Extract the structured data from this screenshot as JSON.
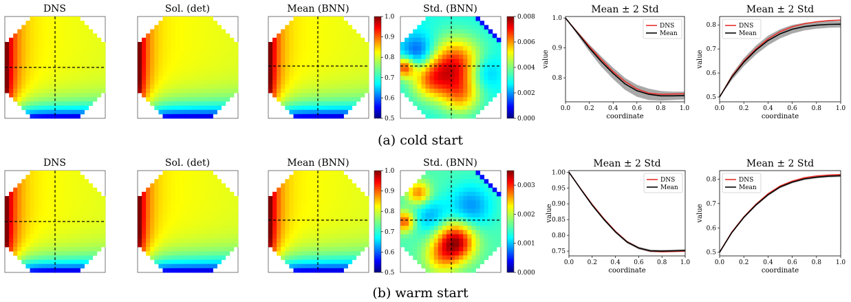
{
  "figure": {
    "rows": [
      {
        "caption": "(a) cold start",
        "panels": [
          {
            "title": "DNS",
            "field": "dns"
          },
          {
            "title": "Sol. (det)",
            "field": "det"
          },
          {
            "title": "Mean (BNN)",
            "field": "mean",
            "colorbar": {
              "min": 0.5,
              "max": 1.0,
              "ticks": [
                "0.5",
                "0.6",
                "0.7",
                "0.8",
                "0.9",
                "1.0"
              ]
            }
          },
          {
            "title": "Std. (BNN)",
            "field": "std_cold",
            "colorbar": {
              "min": 0.0,
              "max": 0.008,
              "ticks": [
                "0.000",
                "0.002",
                "0.004",
                "0.006",
                "0.008"
              ]
            }
          }
        ]
      },
      {
        "caption": "(b) warm start",
        "panels": [
          {
            "title": "DNS",
            "field": "dns"
          },
          {
            "title": "Sol. (det)",
            "field": "det"
          },
          {
            "title": "Mean (BNN)",
            "field": "mean",
            "colorbar": {
              "min": 0.5,
              "max": 1.0,
              "ticks": [
                "0.5",
                "0.6",
                "0.7",
                "0.8",
                "0.9",
                "1.0"
              ]
            }
          },
          {
            "title": "Std. (BNN)",
            "field": "std_warm",
            "colorbar": {
              "min": 0.0,
              "max": 0.0035,
              "ticks": [
                "0.000",
                "0.001",
                "0.002",
                "0.003"
              ]
            }
          }
        ]
      }
    ],
    "colors": {
      "dns": "#e8302a",
      "mean": "#000000",
      "band": "#9a9a9a"
    }
  },
  "chart_data": [
    {
      "type": "line",
      "title": "Mean ± 2 Std",
      "xlabel": "coordinate",
      "ylabel": "value",
      "xlim": [
        0,
        1
      ],
      "ylim": [
        0.72,
        1.005
      ],
      "xticks": [
        "0.0",
        "0.2",
        "0.4",
        "0.6",
        "0.8",
        "1.0"
      ],
      "yticks": [
        "0.8",
        "0.9",
        "1.0"
      ],
      "ytick_values": [
        0.8,
        0.9,
        1.0
      ],
      "legend": "top-right",
      "x": [
        0.0,
        0.1,
        0.2,
        0.3,
        0.4,
        0.5,
        0.6,
        0.7,
        0.8,
        0.9,
        1.0
      ],
      "series": [
        {
          "name": "DNS",
          "values": [
            1.0,
            0.952,
            0.905,
            0.862,
            0.821,
            0.788,
            0.763,
            0.749,
            0.745,
            0.746,
            0.747
          ]
        },
        {
          "name": "Mean",
          "values": [
            1.0,
            0.95,
            0.9,
            0.855,
            0.815,
            0.78,
            0.757,
            0.745,
            0.74,
            0.74,
            0.741
          ]
        }
      ],
      "band": {
        "lower": [
          1.0,
          0.944,
          0.888,
          0.838,
          0.796,
          0.76,
          0.737,
          0.726,
          0.724,
          0.726,
          0.728
        ],
        "upper": [
          1.0,
          0.956,
          0.912,
          0.872,
          0.834,
          0.8,
          0.777,
          0.764,
          0.756,
          0.754,
          0.754
        ]
      }
    },
    {
      "type": "line",
      "title": "Mean ± 2 Std",
      "xlabel": "coordinate",
      "ylabel": "value",
      "xlim": [
        0,
        1
      ],
      "ylim": [
        0.48,
        0.835
      ],
      "xticks": [
        "0.0",
        "0.2",
        "0.4",
        "0.6",
        "0.8",
        "1.0"
      ],
      "yticks": [
        "0.5",
        "0.6",
        "0.7",
        "0.8"
      ],
      "ytick_values": [
        0.5,
        0.6,
        0.7,
        0.8
      ],
      "legend": "top-left",
      "x": [
        0.0,
        0.1,
        0.2,
        0.3,
        0.4,
        0.5,
        0.6,
        0.7,
        0.8,
        0.9,
        1.0
      ],
      "series": [
        {
          "name": "DNS",
          "values": [
            0.5,
            0.585,
            0.65,
            0.7,
            0.742,
            0.772,
            0.792,
            0.805,
            0.813,
            0.818,
            0.82
          ]
        },
        {
          "name": "Mean",
          "values": [
            0.5,
            0.582,
            0.645,
            0.695,
            0.735,
            0.763,
            0.782,
            0.793,
            0.799,
            0.802,
            0.803
          ]
        }
      ],
      "band": {
        "lower": [
          0.5,
          0.57,
          0.628,
          0.676,
          0.715,
          0.744,
          0.764,
          0.777,
          0.784,
          0.788,
          0.79
        ],
        "upper": [
          0.5,
          0.594,
          0.662,
          0.714,
          0.755,
          0.782,
          0.8,
          0.809,
          0.814,
          0.816,
          0.816
        ]
      }
    },
    {
      "type": "line",
      "title": "Mean ± 2 Std",
      "xlabel": "coordinate",
      "ylabel": "value",
      "xlim": [
        0,
        1
      ],
      "ylim": [
        0.735,
        1.005
      ],
      "xticks": [
        "0.0",
        "0.2",
        "0.4",
        "0.6",
        "0.8",
        "1.0"
      ],
      "yticks": [
        "0.75",
        "0.80",
        "0.85",
        "0.90",
        "0.95",
        "1.00"
      ],
      "ytick_values": [
        0.75,
        0.8,
        0.85,
        0.9,
        0.95,
        1.0
      ],
      "legend": "top-right",
      "x": [
        0.0,
        0.1,
        0.2,
        0.3,
        0.4,
        0.5,
        0.6,
        0.7,
        0.8,
        0.9,
        1.0
      ],
      "series": [
        {
          "name": "DNS",
          "values": [
            1.0,
            0.948,
            0.898,
            0.853,
            0.813,
            0.78,
            0.76,
            0.75,
            0.748,
            0.749,
            0.75
          ]
        },
        {
          "name": "Mean",
          "values": [
            1.0,
            0.947,
            0.896,
            0.851,
            0.811,
            0.779,
            0.76,
            0.751,
            0.75,
            0.751,
            0.752
          ]
        }
      ],
      "band": {
        "lower": [
          1.0,
          0.944,
          0.892,
          0.847,
          0.807,
          0.775,
          0.756,
          0.747,
          0.746,
          0.747,
          0.748
        ],
        "upper": [
          1.0,
          0.95,
          0.9,
          0.855,
          0.815,
          0.783,
          0.764,
          0.755,
          0.754,
          0.755,
          0.756
        ]
      }
    },
    {
      "type": "line",
      "title": "Mean ± 2 Std",
      "xlabel": "coordinate",
      "ylabel": "value",
      "xlim": [
        0,
        1
      ],
      "ylim": [
        0.485,
        0.835
      ],
      "xticks": [
        "0.0",
        "0.2",
        "0.4",
        "0.6",
        "0.8",
        "1.0"
      ],
      "yticks": [
        "0.5",
        "0.6",
        "0.7",
        "0.8"
      ],
      "ytick_values": [
        0.5,
        0.6,
        0.7,
        0.8
      ],
      "legend": "top-left",
      "x": [
        0.0,
        0.1,
        0.2,
        0.3,
        0.4,
        0.5,
        0.6,
        0.7,
        0.8,
        0.9,
        1.0
      ],
      "series": [
        {
          "name": "DNS",
          "values": [
            0.5,
            0.582,
            0.645,
            0.697,
            0.74,
            0.772,
            0.792,
            0.806,
            0.813,
            0.817,
            0.819
          ]
        },
        {
          "name": "Mean",
          "values": [
            0.5,
            0.58,
            0.643,
            0.694,
            0.736,
            0.768,
            0.788,
            0.801,
            0.808,
            0.812,
            0.814
          ]
        }
      ],
      "band": {
        "lower": [
          0.5,
          0.576,
          0.638,
          0.689,
          0.731,
          0.763,
          0.783,
          0.796,
          0.803,
          0.807,
          0.809
        ],
        "upper": [
          0.5,
          0.584,
          0.648,
          0.699,
          0.741,
          0.773,
          0.793,
          0.806,
          0.813,
          0.817,
          0.819
        ]
      }
    }
  ]
}
